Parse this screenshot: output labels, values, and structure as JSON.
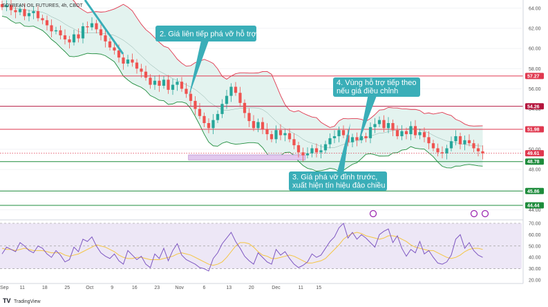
{
  "chart_data": {
    "type": "candlestick",
    "symbol": "SOYBEAN OIL FUTURES, 4h, CBOT",
    "brand": "TradingView",
    "price_axis": {
      "ticks": [
        64.0,
        62.0,
        60.0,
        58.0,
        56.0,
        54.0,
        52.0,
        50.0,
        48.0,
        46.0,
        44.0
      ],
      "labels": [
        "64.00",
        "62.00",
        "60.00",
        "58.00",
        "56.00",
        "54.00",
        "52.00",
        "50.00",
        "48.00",
        "46.00",
        "44.00"
      ],
      "range": [
        43.0,
        64.6
      ]
    },
    "rsi_axis": {
      "ticks": [
        70,
        60,
        50,
        40,
        30,
        20
      ],
      "labels": [
        "70.00",
        "60.00",
        "50.00",
        "40.00",
        "30.00",
        "20.00"
      ],
      "range": [
        17,
        73
      ]
    },
    "x_axis": {
      "labels": [
        "Sep",
        "11",
        "18",
        "25",
        "Oct",
        "9",
        "16",
        "23",
        "Nov",
        "6",
        "13",
        "20",
        "Dec",
        "11",
        "15"
      ],
      "positions": [
        0.5,
        4.5,
        9.5,
        14.5,
        19.5,
        24.5,
        29.5,
        34.5,
        39.5,
        45.0,
        50.5,
        55.5,
        61.0,
        66.5,
        70.5
      ]
    },
    "levels": [
      {
        "value": 57.27,
        "label": "57.27",
        "color": "#e0384f"
      },
      {
        "value": 54.26,
        "label": "54.26",
        "color": "#b4143c"
      },
      {
        "value": 51.98,
        "label": "51.98",
        "color": "#e0384f"
      },
      {
        "value": 48.78,
        "label": "48.78",
        "color": "#1e8c3c"
      },
      {
        "value": 45.86,
        "label": "45.86",
        "color": "#1e8c3c"
      },
      {
        "value": 44.44,
        "label": "44.44",
        "color": "#1e8c3c"
      }
    ],
    "last_price": {
      "value": 49.61,
      "label": "49.61",
      "color": "#e0384f"
    },
    "support_zone": {
      "from": 48.95,
      "to": 49.45,
      "start_index": 41.5,
      "end_index": 67.5
    },
    "closes": [
      64.1,
      64.3,
      63.8,
      63.6,
      63.9,
      63.2,
      63.5,
      63.7,
      63.0,
      62.8,
      62.3,
      61.7,
      61.8,
      61.3,
      60.9,
      60.6,
      61.4,
      61.0,
      62.2,
      62.1,
      62.5,
      61.9,
      61.3,
      60.7,
      60.1,
      59.8,
      59.1,
      58.5,
      58.9,
      58.6,
      58.0,
      57.7,
      57.1,
      56.4,
      56.8,
      56.3,
      56.9,
      55.9,
      56.4,
      56.7,
      56.0,
      55.5,
      54.8,
      54.0,
      53.3,
      52.6,
      52.1,
      52.9,
      53.5,
      54.5,
      55.3,
      56.2,
      55.6,
      54.6,
      53.6,
      52.8,
      52.1,
      52.7,
      52.0,
      51.5,
      51.0,
      51.9,
      51.4,
      51.6,
      51.0,
      50.4,
      49.7,
      49.4,
      49.6,
      50.1,
      49.7,
      49.9,
      50.5,
      51.1,
      51.3,
      51.9,
      51.4,
      50.7,
      51.2,
      50.9,
      51.3,
      51.1,
      52.2,
      52.5,
      52.9,
      52.1,
      52.6,
      51.9,
      51.3,
      51.8,
      51.5,
      52.3,
      51.4,
      51.7,
      51.2,
      50.6,
      50.1,
      49.7,
      49.6,
      50.1,
      50.8,
      51.3,
      50.5,
      50.9,
      50.6,
      50.1,
      49.8,
      49.6
    ],
    "rsi": [
      43,
      49,
      47,
      45,
      53,
      50,
      46,
      44,
      50,
      48,
      43,
      40,
      46,
      42,
      36,
      38,
      49,
      45,
      56,
      54,
      58,
      50,
      44,
      41,
      39,
      43,
      37,
      34,
      46,
      42,
      38,
      41,
      34,
      31,
      43,
      39,
      48,
      37,
      46,
      52,
      42,
      38,
      36,
      34,
      31,
      30,
      28,
      39,
      44,
      52,
      57,
      62,
      54,
      48,
      41,
      37,
      34,
      44,
      40,
      36,
      34,
      47,
      42,
      45,
      39,
      34,
      31,
      33,
      36,
      43,
      40,
      42,
      48,
      54,
      58,
      66,
      70,
      57,
      62,
      56,
      60,
      57,
      53,
      49,
      60,
      63,
      65,
      53,
      59,
      48,
      41,
      47,
      44,
      54,
      43,
      46,
      40,
      35,
      34,
      36,
      42,
      56,
      60,
      48,
      53,
      46,
      42,
      40
    ],
    "rsi_ma": [
      48,
      47,
      47,
      46,
      47,
      48,
      47,
      46,
      46,
      46,
      45,
      44,
      44,
      44,
      42,
      41,
      42,
      43,
      45,
      47,
      49,
      51,
      50,
      49,
      47,
      45,
      42,
      40,
      39,
      39,
      40,
      40,
      39,
      38,
      38,
      38,
      39,
      40,
      41,
      43,
      44,
      43,
      42,
      40,
      38,
      36,
      34,
      33,
      34,
      36,
      40,
      45,
      50,
      53,
      53,
      52,
      49,
      45,
      42,
      41,
      39,
      39,
      40,
      41,
      42,
      41,
      39,
      37,
      35,
      35,
      36,
      37,
      39,
      43,
      47,
      51,
      56,
      59,
      61,
      62,
      61,
      59,
      58,
      57,
      56,
      57,
      59,
      59,
      58,
      56,
      54,
      51,
      49,
      48,
      47,
      46,
      46,
      44,
      42,
      40,
      39,
      40,
      42,
      45,
      47,
      48,
      48,
      47
    ],
    "annotations": [
      {
        "id": "a2",
        "text": [
          "2. Giá liên tiếp phá vỡ hỗ trợ"
        ]
      },
      {
        "id": "a4",
        "text": [
          "4. Vùng hỗ trợ tiếp theo",
          "nếu giá điều chỉnh"
        ]
      },
      {
        "id": "a3",
        "text": [
          "3. Giá phá vỡ đỉnh trước,",
          "xuất hiện tín hiệu đảo chiều"
        ]
      }
    ]
  },
  "colors": {
    "up": "#26a69a",
    "down": "#ef5350",
    "band_upper": "#e0384f",
    "band_lower": "#1e8c3c",
    "band_fill": "#e3f3ef",
    "callout": "#3aaeb8",
    "rsi_line": "#7e57c2",
    "rsi_ma": "#f4c542",
    "rsi_bg": "#ede7f6",
    "zone": "#e1c8ee"
  }
}
